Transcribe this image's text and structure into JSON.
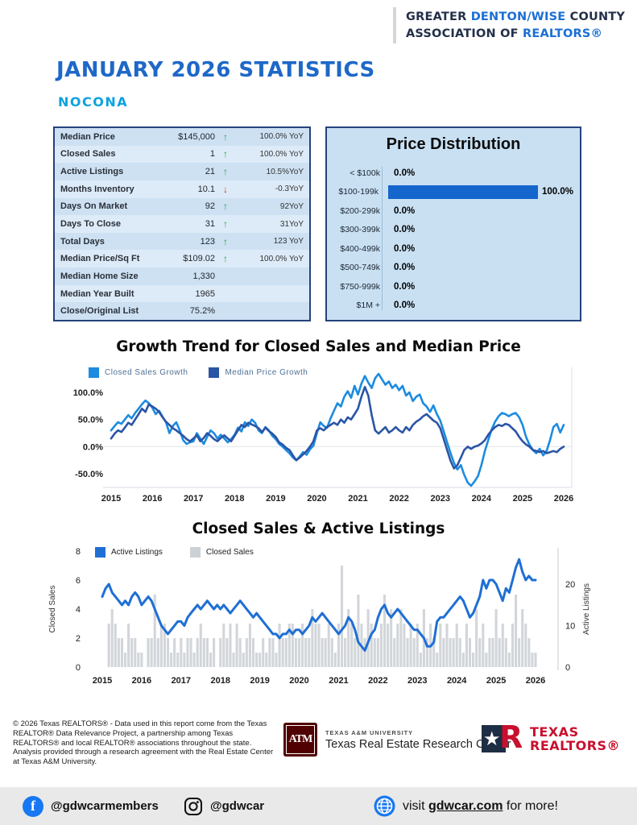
{
  "header": {
    "line1_prefix": "GREATER ",
    "line1_blue": "DENTON/WISE",
    "line1_suffix": " COUNTY",
    "line2_prefix": "ASSOCIATION OF ",
    "line2_blue": "REALTORS®"
  },
  "title": "JANUARY 2026 STATISTICS",
  "subtitle": "NOCONA",
  "stats_table": {
    "rows": [
      {
        "label": "Median Price",
        "value": "$145,000",
        "arrow": "up",
        "yoy": "100.0% YoY"
      },
      {
        "label": "Closed Sales",
        "value": "1",
        "arrow": "up",
        "yoy": "100.0% YoY"
      },
      {
        "label": "Active Listings",
        "value": "21",
        "arrow": "up",
        "yoy": "10.5%YoY"
      },
      {
        "label": "Months Inventory",
        "value": "10.1",
        "arrow": "down",
        "yoy": "-0.3YoY"
      },
      {
        "label": "Days On Market",
        "value": "92",
        "arrow": "up",
        "yoy": "92YoY"
      },
      {
        "label": "Days To Close",
        "value": "31",
        "arrow": "up",
        "yoy": "31YoY"
      },
      {
        "label": "Total Days",
        "value": "123",
        "arrow": "up",
        "yoy": "123 YoY"
      },
      {
        "label": "Median Price/Sq Ft",
        "value": "$109.02",
        "arrow": "up",
        "yoy": "100.0% YoY"
      },
      {
        "label": "Median Home Size",
        "value": "1,330",
        "arrow": "",
        "yoy": ""
      },
      {
        "label": "Median Year Built",
        "value": "1965",
        "arrow": "",
        "yoy": ""
      },
      {
        "label": "Close/Original List",
        "value": "75.2%",
        "arrow": "",
        "yoy": ""
      }
    ]
  },
  "price_distribution": {
    "title": "Price Distribution",
    "categories": [
      "< $100k",
      "$100-199k",
      "$200-299k",
      "$300-399k",
      "$400-499k",
      "$500-749k",
      "$750-999k",
      "$1M +"
    ],
    "values": [
      0,
      100,
      0,
      0,
      0,
      0,
      0,
      0
    ]
  },
  "chart_data": [
    {
      "type": "line",
      "title": "Growth Trend for Closed Sales and Median Price",
      "legend": [
        "Closed Sales Growth",
        "Median Price Growth"
      ],
      "x_ticks": [
        "2015",
        "2016",
        "2017",
        "2018",
        "2019",
        "2020",
        "2021",
        "2022",
        "2023",
        "2024",
        "2025",
        "2026"
      ],
      "y_ticks": [
        "100.0%",
        "50.0%",
        "0.0%",
        "-50.0%"
      ],
      "y_tick_values": [
        100,
        50,
        0,
        -50
      ],
      "ylim": [
        -75,
        140
      ],
      "series": [
        {
          "name": "Closed Sales Growth",
          "color_key": "line_light",
          "values": [
            30,
            38,
            45,
            42,
            50,
            58,
            52,
            62,
            70,
            78,
            85,
            80,
            72,
            60,
            66,
            55,
            45,
            25,
            38,
            45,
            30,
            12,
            5,
            8,
            10,
            25,
            15,
            5,
            18,
            30,
            25,
            15,
            22,
            15,
            8,
            14,
            22,
            35,
            28,
            45,
            38,
            50,
            44,
            30,
            25,
            36,
            30,
            20,
            14,
            5,
            0,
            -6,
            -12,
            -20,
            -25,
            -18,
            -10,
            -15,
            -5,
            2,
            25,
            45,
            38,
            35,
            52,
            66,
            80,
            74,
            92,
            102,
            90,
            112,
            96,
            116,
            130,
            118,
            108,
            126,
            134,
            124,
            114,
            120,
            108,
            114,
            104,
            112,
            94,
            100,
            84,
            92,
            96,
            80,
            74,
            64,
            76,
            60,
            48,
            28,
            8,
            -12,
            -30,
            -42,
            -34,
            -52,
            -66,
            -72,
            -64,
            -54,
            -34,
            -8,
            12,
            32,
            46,
            56,
            62,
            60,
            56,
            60,
            62,
            54,
            40,
            18,
            4,
            -6,
            -12,
            -4,
            -16,
            -8,
            12,
            36,
            42,
            26,
            40
          ]
        },
        {
          "name": "Median Price Growth",
          "color_key": "line_dark",
          "values": [
            15,
            24,
            30,
            27,
            35,
            44,
            40,
            50,
            60,
            70,
            64,
            78,
            74,
            70,
            64,
            54,
            46,
            40,
            34,
            30,
            25,
            20,
            14,
            10,
            15,
            21,
            10,
            16,
            25,
            20,
            14,
            10,
            16,
            21,
            15,
            10,
            20,
            30,
            40,
            36,
            44,
            41,
            38,
            34,
            27,
            35,
            29,
            24,
            18,
            8,
            4,
            -2,
            -6,
            -16,
            -25,
            -20,
            -14,
            -8,
            0,
            10,
            30,
            34,
            30,
            36,
            40,
            44,
            40,
            50,
            44,
            54,
            50,
            60,
            70,
            92,
            110,
            94,
            58,
            30,
            24,
            30,
            36,
            26,
            30,
            36,
            30,
            26,
            36,
            30,
            40,
            46,
            50,
            56,
            60,
            54,
            48,
            44,
            34,
            14,
            -6,
            -26,
            -40,
            -34,
            -20,
            -6,
            0,
            -4,
            0,
            2,
            6,
            12,
            22,
            30,
            36,
            40,
            38,
            42,
            40,
            34,
            28,
            18,
            10,
            4,
            0,
            -6,
            -8,
            -10,
            -8,
            -12,
            -10,
            -8,
            -10,
            -4,
            0
          ]
        }
      ]
    },
    {
      "type": "bar+line",
      "title": "Closed Sales & Active Listings",
      "legend": [
        "Active Listings",
        "Closed Sales"
      ],
      "x_ticks": [
        "2015",
        "2016",
        "2017",
        "2018",
        "2019",
        "2020",
        "2021",
        "2022",
        "2023",
        "2024",
        "2025",
        "2026"
      ],
      "left_axis": {
        "label": "Closed Sales",
        "ticks": [
          0,
          2,
          4,
          6,
          8
        ],
        "max": 8
      },
      "right_axis": {
        "label": "Active Listings",
        "ticks": [
          0,
          10,
          20
        ],
        "max": 28
      },
      "bars": {
        "name": "Closed Sales",
        "values": [
          0,
          0,
          3,
          4,
          3,
          2,
          2,
          1,
          3,
          2,
          2,
          1,
          1,
          0,
          2,
          2,
          5,
          2,
          3,
          3,
          2,
          1,
          2,
          1,
          2,
          1,
          2,
          2,
          1,
          2,
          3,
          2,
          2,
          1,
          2,
          0,
          2,
          3,
          2,
          3,
          1,
          3,
          2,
          1,
          2,
          3,
          2,
          1,
          1,
          2,
          1,
          2,
          2,
          1,
          3,
          2,
          2,
          3,
          3,
          2,
          2,
          3,
          2,
          2,
          4,
          3,
          3,
          2,
          2,
          3,
          2,
          1,
          3,
          7,
          2,
          4,
          3,
          2,
          5,
          3,
          2,
          4,
          3,
          2,
          2,
          3,
          5,
          3,
          4,
          2,
          3,
          4,
          3,
          2,
          3,
          2,
          3,
          1,
          4,
          2,
          3,
          2,
          1,
          3,
          2,
          3,
          2,
          2,
          3,
          2,
          1,
          3,
          2,
          1,
          4,
          2,
          3,
          1,
          2,
          2,
          4,
          2,
          3,
          2,
          1,
          3,
          5,
          2,
          4,
          3,
          2,
          1,
          1
        ]
      },
      "line": {
        "name": "Active Listings",
        "values": [
          17,
          19,
          20,
          18,
          17,
          16,
          15,
          16,
          15,
          17,
          18,
          17,
          15,
          16,
          17,
          16,
          14,
          12,
          10,
          9,
          8,
          9,
          10,
          11,
          11,
          10,
          12,
          13,
          14,
          15,
          14,
          15,
          16,
          15,
          14,
          15,
          14,
          15,
          14,
          13,
          14,
          15,
          16,
          15,
          14,
          13,
          12,
          13,
          12,
          11,
          10,
          9,
          8,
          8,
          7,
          8,
          8,
          9,
          8,
          9,
          9,
          8,
          9,
          10,
          12,
          11,
          12,
          13,
          12,
          11,
          10,
          9,
          8,
          9,
          10,
          12,
          11,
          9,
          6,
          5,
          4,
          6,
          8,
          9,
          12,
          14,
          15,
          13,
          12,
          13,
          14,
          13,
          12,
          11,
          10,
          9,
          9,
          8,
          7,
          5,
          5,
          6,
          11,
          12,
          12,
          13,
          14,
          15,
          16,
          17,
          16,
          14,
          12,
          13,
          15,
          17,
          21,
          19,
          21,
          21,
          20,
          18,
          16,
          19,
          18,
          21,
          24,
          26,
          23,
          21,
          22,
          21,
          21
        ]
      }
    }
  ],
  "footer": {
    "copyright": "© 2026 Texas REALTORS® - Data used in this report come from the Texas REALTOR® Data Relevance Project, a partnership among Texas REALTORS® and local REALTOR® associations throughout the state. Analysis provided through a research agreement with the Real Estate Center at Texas A&M University.",
    "tamu_mark": "ATM",
    "tamu_line1": "TEXAS A&M UNIVERSITY",
    "tamu_line2": "Texas Real Estate Research Center",
    "tr_line1": "TEXAS",
    "tr_line2": "REALTORS®",
    "tr_star": "★",
    "tr_r": "R"
  },
  "bottom_bar": {
    "facebook_handle": "@gdwcarmembers",
    "facebook_icon": "f",
    "instagram_handle": "@gdwcar",
    "visit_prefix": "visit ",
    "visit_link": "gdwcar.com",
    "visit_suffix": " for more!"
  },
  "colors": {
    "brand_blue": "#1a6fd4",
    "title_blue": "#1e68c8",
    "subtitle_cyan": "#0da2e0",
    "up_green": "#2e9e4f",
    "down_red": "#c23b2e",
    "dist_bar_blue": "#1466cc",
    "line_light": "#1c8be0",
    "line_dark": "#2b55a5",
    "line_strong": "#1f6fd4",
    "bars_gray": "#d2d6da",
    "legend_gray": "#ccd1d6",
    "fb_blue": "#1877f2",
    "tamu_maroon": "#500000",
    "realtors_red": "#c8102e",
    "realtors_navy": "#1d2d44"
  }
}
